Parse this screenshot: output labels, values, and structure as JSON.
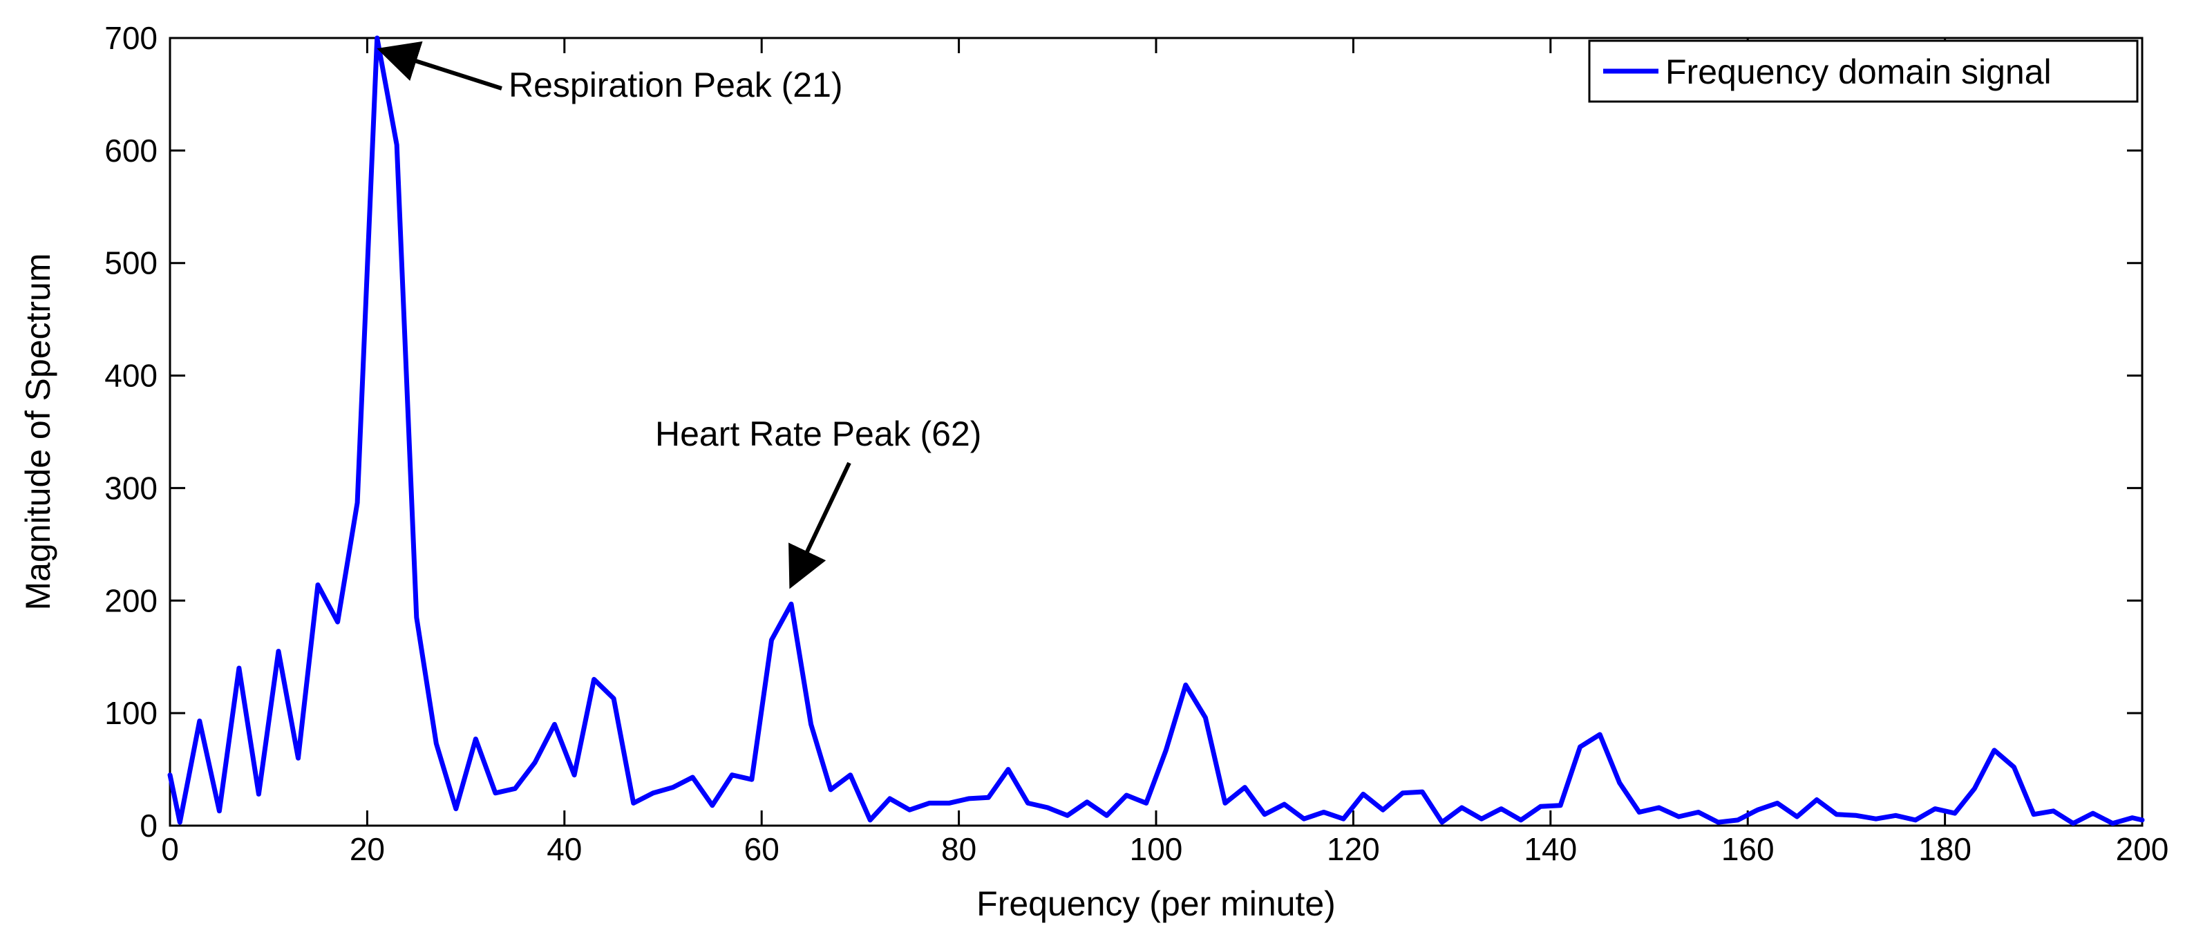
{
  "chart_data": {
    "type": "line",
    "title": "",
    "xlabel": "Frequency (per minute)",
    "ylabel": "Magnitude of Spectrum",
    "xlim": [
      0,
      200
    ],
    "ylim": [
      0,
      700
    ],
    "xticks": [
      0,
      20,
      40,
      60,
      80,
      100,
      120,
      140,
      160,
      180,
      200
    ],
    "yticks": [
      0,
      100,
      200,
      300,
      400,
      500,
      600,
      700
    ],
    "grid": false,
    "legend_position": "top-right",
    "series": [
      {
        "name": "Frequency domain signal",
        "color": "#0000ff",
        "x": [
          0,
          1,
          3,
          5,
          7,
          9,
          11,
          13,
          15,
          17,
          19,
          21,
          23,
          25,
          27,
          29,
          31,
          33,
          35,
          37,
          39,
          41,
          43,
          45,
          47,
          49,
          51,
          53,
          55,
          57,
          59,
          61,
          63,
          65,
          67,
          69,
          71,
          73,
          75,
          77,
          79,
          81,
          83,
          85,
          87,
          89,
          91,
          93,
          95,
          97,
          99,
          101,
          103,
          105,
          107,
          109,
          111,
          113,
          115,
          117,
          119,
          121,
          123,
          125,
          127,
          129,
          131,
          133,
          135,
          137,
          139,
          141,
          143,
          145,
          147,
          149,
          151,
          153,
          155,
          157,
          159,
          161,
          163,
          165,
          167,
          169,
          171,
          173,
          175,
          177,
          179,
          181,
          183,
          185,
          187,
          189,
          191,
          193,
          195,
          197,
          199,
          200
        ],
        "values": [
          45,
          3,
          93,
          13,
          140,
          28,
          155,
          60,
          214,
          181,
          287,
          700,
          605,
          185,
          73,
          15,
          77,
          29,
          33,
          56,
          90,
          45,
          130,
          113,
          20,
          29,
          34,
          43,
          18,
          45,
          41,
          165,
          197,
          90,
          32,
          45,
          5,
          24,
          14,
          20,
          20,
          24,
          25,
          50,
          20,
          16,
          9,
          21,
          9,
          27,
          20,
          67,
          125,
          96,
          20,
          34,
          10,
          19,
          6,
          12,
          6,
          28,
          14,
          29,
          30,
          3,
          16,
          6,
          15,
          5,
          17,
          18,
          70,
          81,
          38,
          12,
          16,
          8,
          12,
          3,
          5,
          14,
          20,
          8,
          23,
          10,
          9,
          6,
          9,
          5,
          15,
          11,
          33,
          67,
          52,
          10,
          13,
          2,
          11,
          2,
          7,
          5
        ]
      }
    ],
    "annotations": [
      {
        "text": "Respiration Peak (21)",
        "target_x": 21,
        "target_y": 700
      },
      {
        "text": "Heart Rate Peak (62)",
        "target_x": 62,
        "target_y": 197
      }
    ]
  }
}
